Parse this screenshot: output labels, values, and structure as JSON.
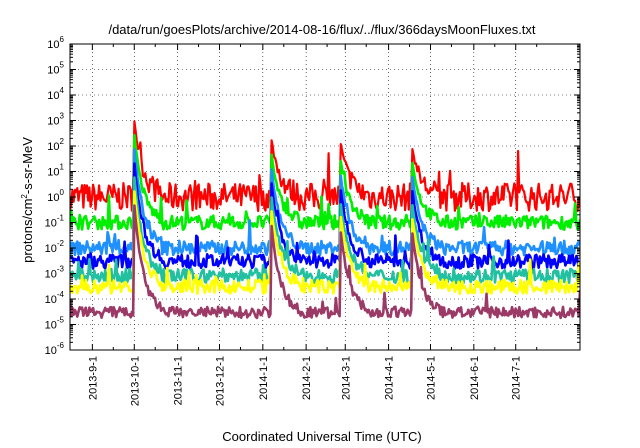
{
  "chart_data": {
    "type": "line",
    "title": "/data/run/goesPlots/archive/2014-08-16/flux/../flux/366daysMoonFluxes.txt",
    "xlabel": "Coordinated Universal Time (UTC)",
    "ylabel": {
      "base": "protons/cm",
      "exp": "2",
      "rest": "-s-sr-MeV"
    },
    "y_scale": "log",
    "ylim": [
      1e-06,
      1000000.0
    ],
    "xlim": [
      "2013-08-16",
      "2014-08-16"
    ],
    "grid": true,
    "legend": "none",
    "x_tick_labels": [
      "2013-9-1",
      "2013-10-1",
      "2013-11-1",
      "2013-12-1",
      "2014-1-1",
      "2014-2-1",
      "2014-3-1",
      "2014-4-1",
      "2014-5-1",
      "2014-6-1",
      "2014-7-1"
    ],
    "y_tick_labels": [
      {
        "base": "10",
        "exp": "-6"
      },
      {
        "base": "10",
        "exp": "-5"
      },
      {
        "base": "10",
        "exp": "-4"
      },
      {
        "base": "10",
        "exp": "-3"
      },
      {
        "base": "10",
        "exp": "-2"
      },
      {
        "base": "10",
        "exp": "-1"
      },
      {
        "base": "10",
        "exp": "0"
      },
      {
        "base": "10",
        "exp": "1"
      },
      {
        "base": "10",
        "exp": "2"
      },
      {
        "base": "10",
        "exp": "3"
      },
      {
        "base": "10",
        "exp": "4"
      },
      {
        "base": "10",
        "exp": "5"
      },
      {
        "base": "10",
        "exp": "6"
      }
    ],
    "events": [
      {
        "date": "2013-10-01",
        "peak": 1000
      },
      {
        "date": "2014-01-07",
        "peak": 200
      },
      {
        "date": "2014-02-25",
        "peak": 200
      },
      {
        "date": "2014-04-18",
        "peak": 80
      }
    ],
    "series": [
      {
        "color": "#ff0000",
        "baseline": 1.0
      },
      {
        "color": "#00ee00",
        "baseline": 0.1
      },
      {
        "color": "#1e90ff",
        "baseline": 0.01
      },
      {
        "color": "#0000ff",
        "baseline": 0.003
      },
      {
        "color": "#20c0a0",
        "baseline": 0.0008
      },
      {
        "color": "#ffff00",
        "baseline": 0.0003
      },
      {
        "color": "#9b3a66",
        "baseline": 3e-05
      }
    ]
  }
}
